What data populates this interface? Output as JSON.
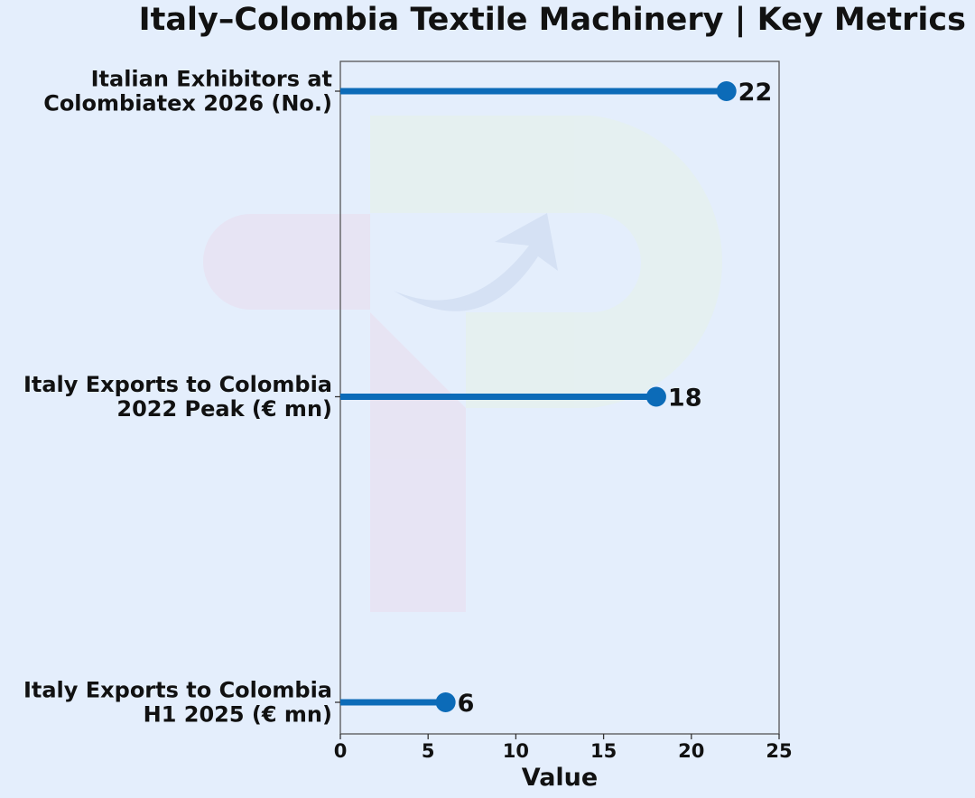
{
  "chart_data": {
    "type": "lollipop",
    "orientation": "horizontal",
    "title": "Italy–Colombia Textile Machinery | Key Metrics",
    "xlabel": "Value",
    "ylabel": "",
    "xlim": [
      0,
      25
    ],
    "xticks": [
      0,
      5,
      10,
      15,
      20,
      25
    ],
    "grid": false,
    "legend": "none",
    "colors": {
      "series": "#0c6bb8",
      "background": "#e4eefc",
      "text": "#111111"
    },
    "categories": [
      {
        "lines": [
          "Italian Exhibitors at",
          "Colombiatex 2026 (No.)"
        ],
        "value": 22,
        "value_label": "22"
      },
      {
        "lines": [
          "Italy Exports to Colombia",
          "2022 Peak (€ mn)"
        ],
        "value": 18,
        "value_label": "18"
      },
      {
        "lines": [
          "Italy Exports to Colombia",
          "H1 2025 (€ mn)"
        ],
        "value": 6,
        "value_label": "6"
      }
    ]
  }
}
